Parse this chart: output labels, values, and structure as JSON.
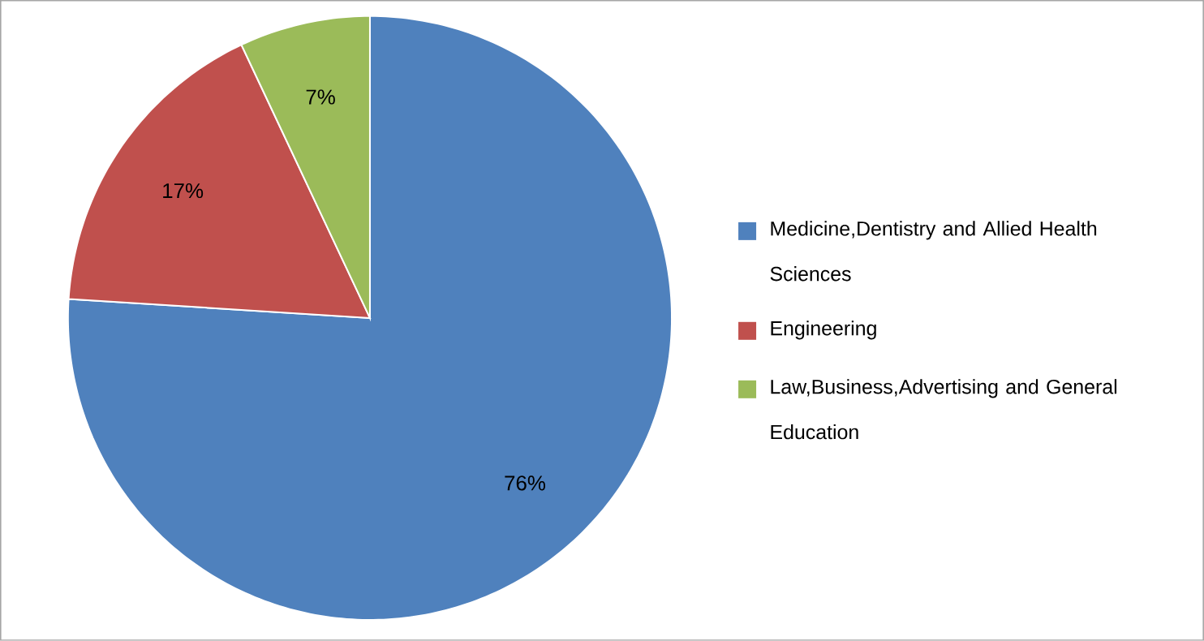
{
  "chart_data": {
    "type": "pie",
    "categories": [
      "Medicine,Dentistry and Allied Health Sciences",
      "Engineering",
      "Law,Business,Advertising and General Education"
    ],
    "values": [
      76,
      17,
      7
    ],
    "colors": [
      "#4f81bd",
      "#c0504d",
      "#9bbb59"
    ],
    "value_labels": [
      "76%",
      "17%",
      "7%"
    ],
    "legend": "right"
  }
}
